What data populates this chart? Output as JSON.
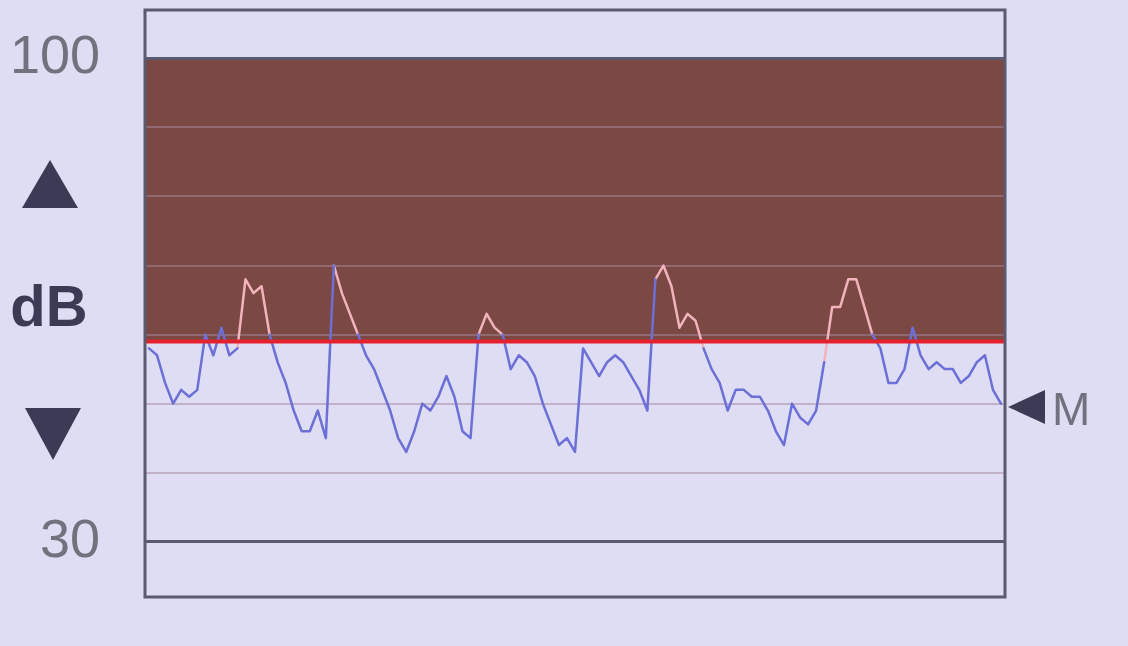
{
  "chart_data": {
    "type": "line",
    "ylabel": "dB",
    "categories": [
      null,
      null,
      null,
      null,
      null,
      null,
      null,
      null,
      null,
      null,
      null,
      null,
      null,
      null,
      null,
      null,
      null,
      null,
      null,
      null,
      null,
      null,
      null,
      null,
      null,
      null,
      null,
      null,
      null,
      null,
      null,
      null,
      null,
      null,
      null,
      null,
      null,
      null,
      null,
      null,
      null,
      null,
      null,
      null,
      null,
      null,
      null,
      null,
      null,
      null,
      null,
      null,
      null,
      null,
      null,
      null,
      null,
      null,
      null,
      null,
      null,
      null,
      null,
      null,
      null,
      null,
      null,
      null,
      null,
      null,
      null,
      null,
      null,
      null,
      null,
      null,
      null,
      null,
      null,
      null,
      null,
      null,
      null,
      null,
      null,
      null,
      null,
      null,
      null,
      null,
      null,
      null,
      null,
      null,
      null,
      null,
      null,
      null,
      null,
      null,
      null,
      null,
      null,
      null,
      null,
      null,
      null
    ],
    "series": [
      {
        "color": "#6b6fd6",
        "values": [
          58,
          57,
          53,
          50,
          52,
          51,
          52,
          60,
          57,
          61,
          57,
          58,
          null,
          null,
          null,
          60,
          56,
          53,
          49,
          46,
          46,
          49,
          45,
          70,
          null,
          null,
          60,
          57,
          55,
          52,
          49,
          45,
          43,
          46,
          50,
          49,
          51,
          54,
          51,
          46,
          45,
          60,
          null,
          null,
          60,
          55,
          57,
          56,
          54,
          50,
          47,
          44,
          45,
          43,
          58,
          56,
          54,
          56,
          57,
          56,
          54,
          52,
          49,
          68,
          null,
          null,
          null,
          null,
          null,
          58,
          55,
          53,
          49,
          52,
          52,
          51,
          51,
          49,
          46,
          44,
          50,
          48,
          47,
          49,
          56,
          null,
          null,
          null,
          null,
          null,
          60,
          58,
          53,
          53,
          55,
          61,
          57,
          55,
          56,
          55,
          55,
          53,
          54,
          56,
          57,
          52,
          50
        ]
      },
      {
        "color": "#f2b3bd",
        "values": [
          null,
          null,
          null,
          null,
          null,
          null,
          null,
          null,
          null,
          null,
          null,
          58,
          68,
          66,
          67,
          60,
          null,
          null,
          null,
          null,
          null,
          null,
          null,
          70,
          66,
          63,
          60,
          null,
          null,
          null,
          null,
          null,
          null,
          null,
          null,
          null,
          null,
          null,
          null,
          null,
          null,
          60,
          63,
          61,
          60,
          null,
          null,
          null,
          null,
          null,
          null,
          null,
          null,
          null,
          null,
          null,
          null,
          null,
          null,
          null,
          null,
          null,
          null,
          68,
          70,
          67,
          61,
          63,
          62,
          58,
          null,
          null,
          null,
          null,
          null,
          null,
          null,
          null,
          null,
          null,
          null,
          null,
          null,
          null,
          56,
          64,
          64,
          68,
          68,
          64,
          60,
          null,
          null,
          null,
          null,
          null,
          null,
          null,
          null,
          null,
          null,
          null,
          null,
          null,
          null,
          null,
          null
        ]
      }
    ],
    "ylim": [
      22,
      107
    ],
    "yticks": [
      100,
      {
        "value": 90,
        "label": null
      },
      {
        "value": 80,
        "label": null
      },
      {
        "value": 70,
        "label": null
      },
      {
        "value": 60,
        "label": null
      },
      {
        "value": 50,
        "label": null
      },
      {
        "value": 40,
        "label": null
      },
      30
    ],
    "grid": "y",
    "ref_lines": [
      {
        "axis": "y",
        "value": 59,
        "color": "#e3222e"
      }
    ],
    "bands": [
      {
        "axis": "y",
        "from": 59,
        "to": 100,
        "color": "#7b4843"
      }
    ],
    "annotations": [
      "M"
    ],
    "marker": "none",
    "legend": false,
    "line_style": "solid"
  }
}
